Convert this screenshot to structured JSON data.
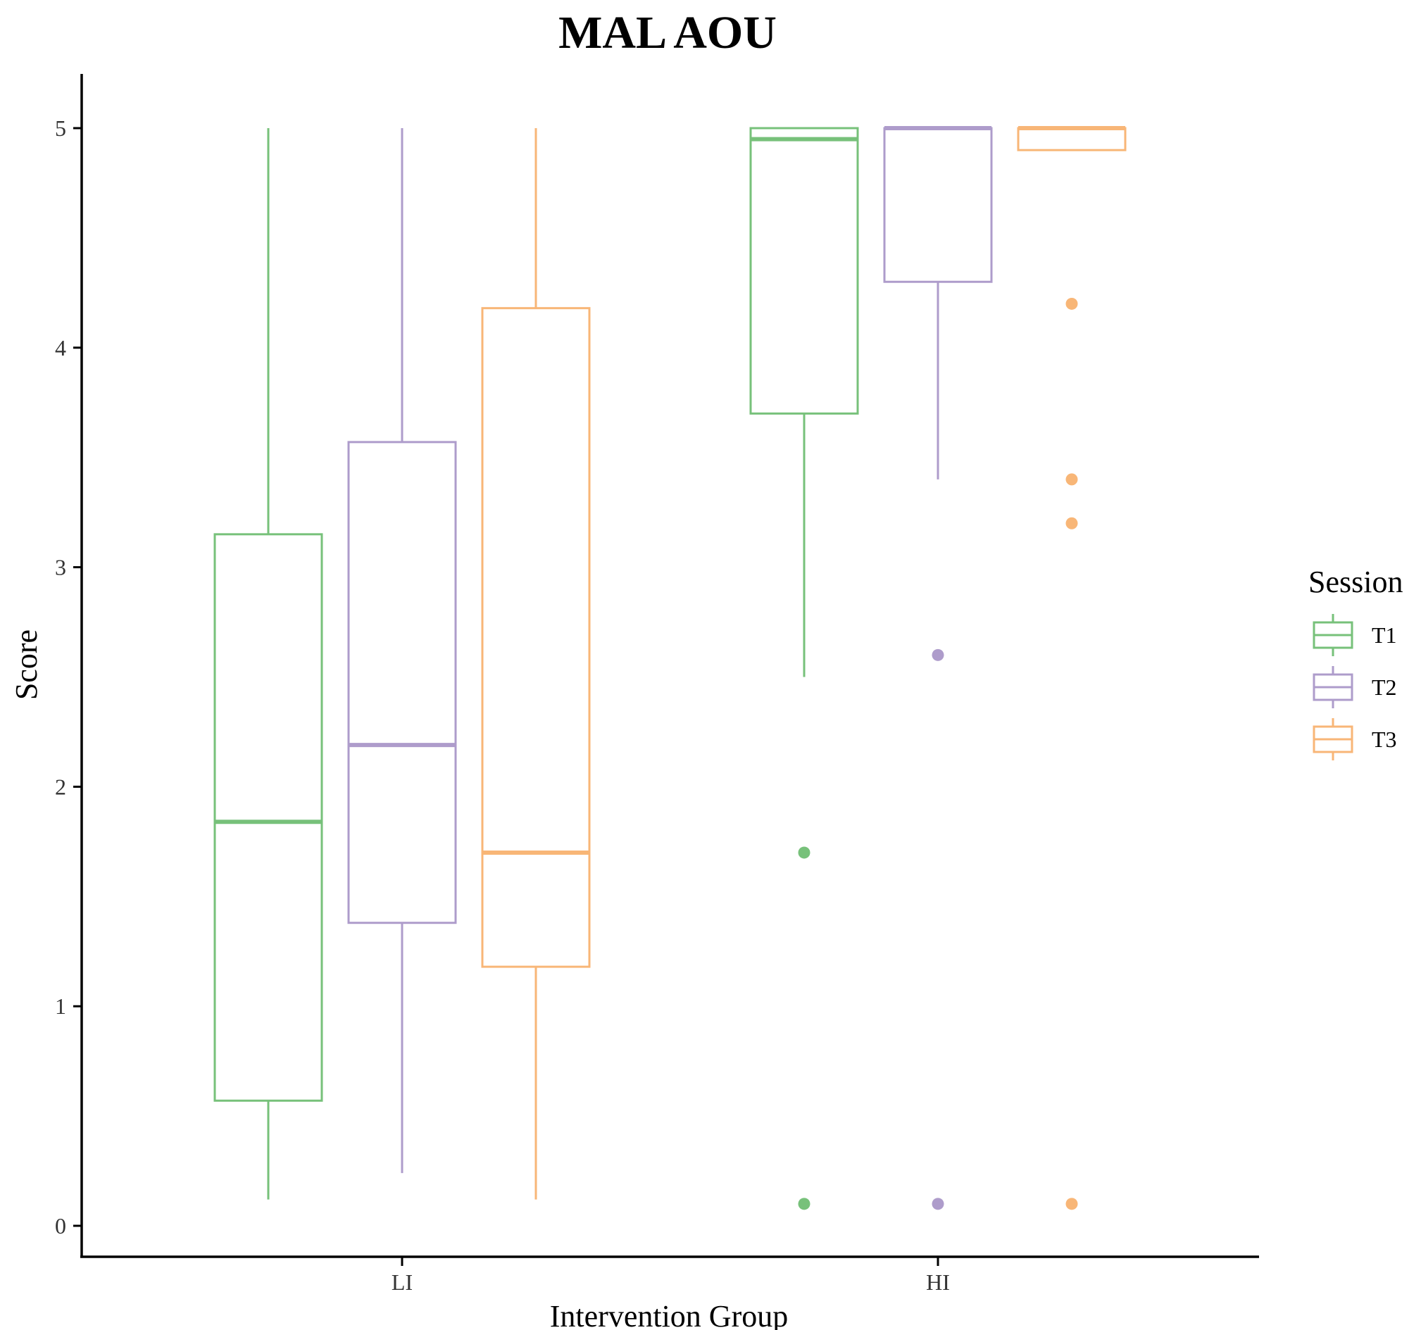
{
  "chart_data": {
    "type": "box",
    "title": "MAL AOU",
    "xlabel": "Intervention Group",
    "ylabel": "Score",
    "categories": [
      "LI",
      "HI"
    ],
    "ylim": [
      -0.14,
      5.24
    ],
    "yticks": [
      0,
      1,
      2,
      3,
      4,
      5
    ],
    "grid": false,
    "legend": {
      "title": "Session",
      "position": "right"
    },
    "series": [
      {
        "name": "T1",
        "color": "#77C17A",
        "boxes": [
          {
            "category": "LI",
            "whisker_low": 0.12,
            "q1": 0.57,
            "median": 1.84,
            "q3": 3.15,
            "whisker_high": 5.0,
            "outliers": []
          },
          {
            "category": "HI",
            "whisker_low": 2.5,
            "q1": 3.7,
            "median": 4.95,
            "q3": 5.0,
            "whisker_high": 5.0,
            "outliers": [
              1.7,
              0.1
            ]
          }
        ]
      },
      {
        "name": "T2",
        "color": "#AE9CCB",
        "boxes": [
          {
            "category": "LI",
            "whisker_low": 0.24,
            "q1": 1.38,
            "median": 2.19,
            "q3": 3.57,
            "whisker_high": 5.0,
            "outliers": []
          },
          {
            "category": "HI",
            "whisker_low": 3.4,
            "q1": 4.3,
            "median": 5.0,
            "q3": 5.0,
            "whisker_high": 5.0,
            "outliers": [
              2.6,
              0.1
            ]
          }
        ]
      },
      {
        "name": "T3",
        "color": "#F8B677",
        "boxes": [
          {
            "category": "LI",
            "whisker_low": 0.12,
            "q1": 1.18,
            "median": 1.7,
            "q3": 4.18,
            "whisker_high": 5.0,
            "outliers": []
          },
          {
            "category": "HI",
            "whisker_low": 4.9,
            "q1": 4.9,
            "median": 5.0,
            "q3": 5.0,
            "whisker_high": 5.0,
            "outliers": [
              4.2,
              3.4,
              3.2,
              0.1
            ]
          }
        ]
      }
    ]
  }
}
